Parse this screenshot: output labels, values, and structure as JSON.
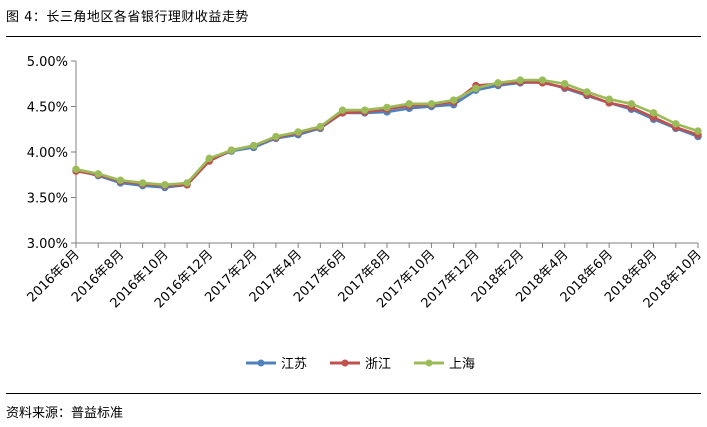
{
  "figure": {
    "title": "图 4：长三角地区各省银行理财收益走势",
    "source": "资料来源：普益标准"
  },
  "chart_data": {
    "type": "line",
    "title": "",
    "xlabel": "",
    "ylabel": "",
    "ylim": [
      0.03,
      0.05
    ],
    "yticks": [
      "3.00%",
      "3.50%",
      "4.00%",
      "4.50%",
      "5.00%"
    ],
    "grid": false,
    "legend_position": "bottom",
    "categories": [
      "2016年6月",
      "2016年7月",
      "2016年8月",
      "2016年9月",
      "2016年10月",
      "2016年11月",
      "2016年12月",
      "2017年1月",
      "2017年2月",
      "2017年3月",
      "2017年4月",
      "2017年5月",
      "2017年6月",
      "2017年7月",
      "2017年8月",
      "2017年9月",
      "2017年10月",
      "2017年11月",
      "2017年12月",
      "2018年1月",
      "2018年2月",
      "2018年3月",
      "2018年4月",
      "2018年5月",
      "2018年6月",
      "2018年7月",
      "2018年8月",
      "2018年9月",
      "2018年10月"
    ],
    "xtick_labels": [
      "2016年6月",
      "2016年8月",
      "2016年10月",
      "2016年12月",
      "2017年2月",
      "2017年4月",
      "2017年6月",
      "2017年8月",
      "2017年10月",
      "2017年12月",
      "2018年2月",
      "2018年4月",
      "2018年6月",
      "2018年8月",
      "2018年10月"
    ],
    "series": [
      {
        "name": "江苏",
        "color": "#4f81bd",
        "values": [
          0.038,
          0.0374,
          0.0366,
          0.0363,
          0.0361,
          0.0364,
          0.0391,
          0.0401,
          0.0405,
          0.0415,
          0.0419,
          0.0426,
          0.0443,
          0.0443,
          0.0444,
          0.0448,
          0.045,
          0.0452,
          0.0468,
          0.0473,
          0.0476,
          0.0477,
          0.047,
          0.0462,
          0.0454,
          0.0447,
          0.0436,
          0.0426,
          0.0417
        ]
      },
      {
        "name": "浙江",
        "color": "#c0504d",
        "values": [
          0.0379,
          0.0375,
          0.0368,
          0.0365,
          0.0363,
          0.0364,
          0.039,
          0.0402,
          0.0407,
          0.0416,
          0.0421,
          0.0427,
          0.0443,
          0.0444,
          0.0447,
          0.0451,
          0.0452,
          0.0455,
          0.0473,
          0.0475,
          0.0477,
          0.0476,
          0.0471,
          0.0463,
          0.0454,
          0.0449,
          0.0438,
          0.0427,
          0.0419
        ]
      },
      {
        "name": "上海",
        "color": "#9bbb59",
        "values": [
          0.0381,
          0.0376,
          0.0369,
          0.0366,
          0.0364,
          0.0366,
          0.0393,
          0.0402,
          0.0407,
          0.0417,
          0.0422,
          0.0428,
          0.0446,
          0.0446,
          0.0449,
          0.0453,
          0.0453,
          0.0457,
          0.047,
          0.0476,
          0.0479,
          0.0479,
          0.0475,
          0.0466,
          0.0458,
          0.0453,
          0.0443,
          0.0431,
          0.0423
        ]
      }
    ]
  }
}
